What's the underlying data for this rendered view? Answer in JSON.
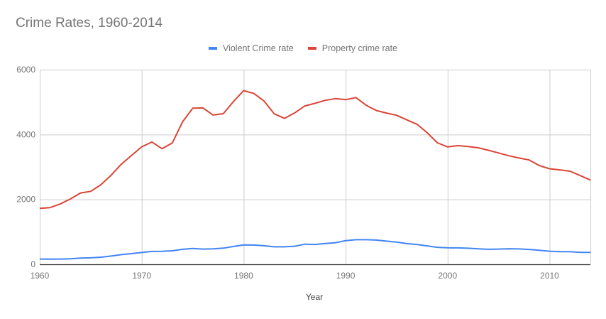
{
  "chart_data": {
    "type": "line",
    "title": "Crime Rates, 1960-2014",
    "xlabel": "Year",
    "ylabel": "",
    "xlim": [
      1960,
      2014
    ],
    "ylim": [
      0,
      6000
    ],
    "x_ticks": [
      1960,
      1970,
      1980,
      1990,
      2000,
      2010
    ],
    "y_ticks": [
      0,
      2000,
      4000,
      6000
    ],
    "grid": true,
    "legend_position": "top",
    "x": [
      1960,
      1961,
      1962,
      1963,
      1964,
      1965,
      1966,
      1967,
      1968,
      1969,
      1970,
      1971,
      1972,
      1973,
      1974,
      1975,
      1976,
      1977,
      1978,
      1979,
      1980,
      1981,
      1982,
      1983,
      1984,
      1985,
      1986,
      1987,
      1988,
      1989,
      1990,
      1991,
      1992,
      1993,
      1994,
      1995,
      1996,
      1997,
      1998,
      1999,
      2000,
      2001,
      2002,
      2003,
      2004,
      2005,
      2006,
      2007,
      2008,
      2009,
      2010,
      2011,
      2012,
      2013,
      2014
    ],
    "series": [
      {
        "name": "Violent Crime rate",
        "color": "#4285f4",
        "values": [
          161,
          158,
          162,
          168,
          190,
          200,
          220,
          253,
          298,
          329,
          364,
          396,
          401,
          417,
          461,
          487,
          468,
          475,
          498,
          549,
          597,
          594,
          571,
          538,
          539,
          557,
          620,
          610,
          640,
          666,
          730,
          758,
          758,
          747,
          714,
          685,
          637,
          611,
          568,
          523,
          507,
          505,
          494,
          476,
          463,
          469,
          480,
          472,
          458,
          432,
          404,
          387,
          387,
          368,
          366
        ]
      },
      {
        "name": "Property crime rate",
        "color": "#db4437",
        "values": [
          1726,
          1748,
          1857,
          2012,
          2198,
          2249,
          2452,
          2747,
          3085,
          3352,
          3622,
          3769,
          3562,
          3738,
          4389,
          4811,
          4820,
          4601,
          4643,
          5016,
          5353,
          5264,
          5033,
          4638,
          4498,
          4666,
          4882,
          4963,
          5055,
          5107,
          5073,
          5140,
          4903,
          4740,
          4661,
          4591,
          4451,
          4316,
          4053,
          3744,
          3618,
          3658,
          3631,
          3591,
          3515,
          3432,
          3346,
          3276,
          3215,
          3042,
          2946,
          2910,
          2868,
          2734,
          2596
        ]
      }
    ]
  },
  "legend": {
    "items": [
      {
        "label": "Violent Crime rate",
        "color": "#4285f4"
      },
      {
        "label": "Property crime rate",
        "color": "#db4437"
      }
    ]
  }
}
